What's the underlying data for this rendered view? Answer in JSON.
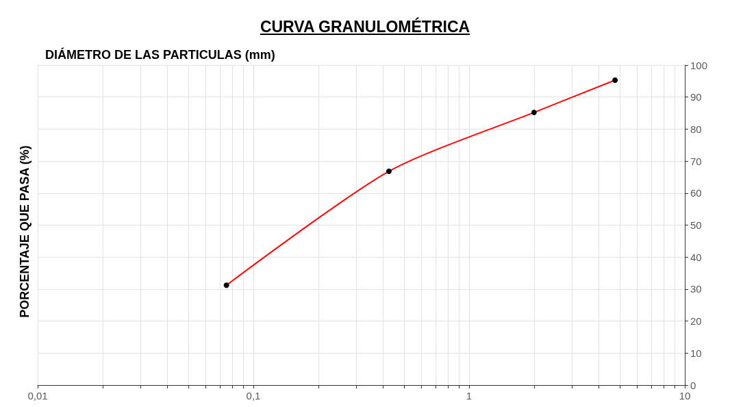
{
  "chart_data": {
    "type": "line",
    "title": "CURVA GRANULOMÉTRICA",
    "xlabel": "DIÁMETRO DE LAS PARTICULAS (mm)",
    "ylabel": "PORCENTAJE QUE PASA (%)",
    "log": "x",
    "xlim": [
      0.01,
      10
    ],
    "xticks": [
      {
        "value": 0.01,
        "label": "0,01"
      },
      {
        "value": 0.02,
        "label": null
      },
      {
        "value": 0.03,
        "label": null
      },
      {
        "value": 0.04,
        "label": null
      },
      {
        "value": 0.05,
        "label": null
      },
      {
        "value": 0.06,
        "label": null
      },
      {
        "value": 0.07,
        "label": null
      },
      {
        "value": 0.08,
        "label": null
      },
      {
        "value": 0.09,
        "label": null
      },
      {
        "value": 0.1,
        "label": "0,1"
      },
      {
        "value": 0.2,
        "label": null
      },
      {
        "value": 0.3,
        "label": null
      },
      {
        "value": 0.4,
        "label": null
      },
      {
        "value": 0.5,
        "label": null
      },
      {
        "value": 0.6,
        "label": null
      },
      {
        "value": 0.7,
        "label": null
      },
      {
        "value": 0.8,
        "label": null
      },
      {
        "value": 0.9,
        "label": null
      },
      1,
      {
        "value": 2,
        "label": null
      },
      {
        "value": 3,
        "label": null
      },
      {
        "value": 4,
        "label": null
      },
      {
        "value": 5,
        "label": null
      },
      {
        "value": 6,
        "label": null
      },
      {
        "value": 7,
        "label": null
      },
      {
        "value": 8,
        "label": null
      },
      {
        "value": 9,
        "label": null
      },
      10
    ],
    "ylim": [
      0,
      100
    ],
    "yticks": [
      0,
      10,
      20,
      30,
      40,
      50,
      60,
      70,
      80,
      90,
      100
    ],
    "grid": true,
    "marker": "circle",
    "line_style": "solid",
    "series": [
      {
        "color": "#ff0000",
        "x": [
          0.075,
          0.425,
          2,
          4.75
        ],
        "values": [
          31.2,
          66.8,
          85.2,
          95.3
        ]
      }
    ]
  }
}
